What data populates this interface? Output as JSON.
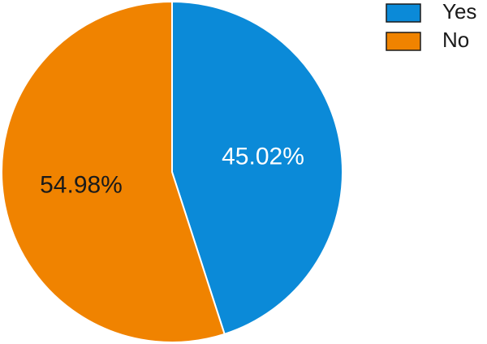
{
  "chart_data": {
    "type": "pie",
    "categories": [
      "Yes",
      "No"
    ],
    "values": [
      45.02,
      54.98
    ],
    "value_labels": [
      "45.02%",
      "54.98%"
    ],
    "colors": [
      "#0b8ad8",
      "#f08300"
    ],
    "label_colors": [
      "#ffffff",
      "#1a1a1a"
    ]
  }
}
